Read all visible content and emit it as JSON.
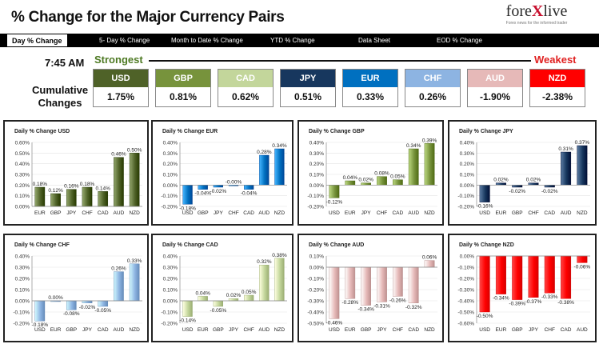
{
  "header": {
    "title": "% Change for the Major Currency Pairs",
    "logo_text_a": "fore",
    "logo_text_b": "X",
    "logo_text_c": "live",
    "logo_tagline": "Forex news for the informed trader"
  },
  "nav": {
    "items": [
      "Day % Change",
      "5- Day % Change",
      "Month to Date % Change",
      "YTD % Change",
      "Data Sheet",
      "EOD % Change"
    ]
  },
  "summary": {
    "time": "7:45 AM",
    "strongest_label": "Strongest",
    "weakest_label": "Weakest",
    "cumulative_line1": "Cumulative",
    "cumulative_line2": "Changes",
    "currencies": [
      {
        "code": "USD",
        "value": "1.75%",
        "color": "#4f6228"
      },
      {
        "code": "GBP",
        "value": "0.81%",
        "color": "#77933c"
      },
      {
        "code": "CAD",
        "value": "0.62%",
        "color": "#c3d69b"
      },
      {
        "code": "JPY",
        "value": "0.51%",
        "color": "#17375e"
      },
      {
        "code": "EUR",
        "value": "0.33%",
        "color": "#0070c0"
      },
      {
        "code": "CHF",
        "value": "0.26%",
        "color": "#8db4e2"
      },
      {
        "code": "AUD",
        "value": "-1.90%",
        "color": "#e6b9b8"
      },
      {
        "code": "NZD",
        "value": "-2.38%",
        "color": "#ff0000"
      }
    ]
  },
  "chart_data": [
    {
      "type": "bar",
      "title": "Daily % Change USD",
      "categories": [
        "EUR",
        "GBP",
        "JPY",
        "CHF",
        "CAD",
        "AUD",
        "NZD"
      ],
      "values": [
        0.18,
        0.12,
        0.16,
        0.18,
        0.14,
        0.46,
        0.5
      ],
      "labels": [
        "0.18%",
        "0.12%",
        "0.16%",
        "0.18%",
        "0.14%",
        "0.46%",
        "0.50%"
      ],
      "ylim": [
        0,
        0.6
      ],
      "ticks": [
        0,
        0.1,
        0.2,
        0.3,
        0.4,
        0.5,
        0.6
      ],
      "tick_labels": [
        "0.00%",
        "0.10%",
        "0.20%",
        "0.30%",
        "0.40%",
        "0.50%",
        "0.60%"
      ],
      "color": "#4f6228"
    },
    {
      "type": "bar",
      "title": "Daily % Change EUR",
      "categories": [
        "USD",
        "GBP",
        "JPY",
        "CHF",
        "CAD",
        "AUD",
        "NZD"
      ],
      "values": [
        -0.18,
        -0.04,
        -0.02,
        -0.0,
        -0.04,
        0.28,
        0.34
      ],
      "labels": [
        "-0.18%",
        "-0.04%",
        "-0.02%",
        "-0.00%",
        "-0.04%",
        "0.28%",
        "0.34%"
      ],
      "ylim": [
        -0.2,
        0.4
      ],
      "ticks": [
        -0.2,
        -0.1,
        0,
        0.1,
        0.2,
        0.3,
        0.4
      ],
      "tick_labels": [
        "-0.20%",
        "-0.10%",
        "0.00%",
        "0.10%",
        "0.20%",
        "0.30%",
        "0.40%"
      ],
      "color": "#0070c0"
    },
    {
      "type": "bar",
      "title": "Daily % Change GBP",
      "categories": [
        "USD",
        "EUR",
        "JPY",
        "CHF",
        "CAD",
        "AUD",
        "NZD"
      ],
      "values": [
        -0.12,
        0.04,
        0.02,
        0.08,
        0.05,
        0.34,
        0.39
      ],
      "labels": [
        "-0.12%",
        "0.04%",
        "0.02%",
        "0.08%",
        "0.05%",
        "0.34%",
        "0.39%"
      ],
      "ylim": [
        -0.2,
        0.4
      ],
      "ticks": [
        -0.2,
        -0.1,
        0,
        0.1,
        0.2,
        0.3,
        0.4
      ],
      "tick_labels": [
        "-0.20%",
        "-0.10%",
        "0.00%",
        "0.10%",
        "0.20%",
        "0.30%",
        "0.40%"
      ],
      "color": "#77933c"
    },
    {
      "type": "bar",
      "title": "Daily % Change JPY",
      "categories": [
        "USD",
        "EUR",
        "GBP",
        "CHF",
        "CAD",
        "AUD",
        "NZD"
      ],
      "values": [
        -0.16,
        0.02,
        -0.02,
        0.02,
        -0.02,
        0.31,
        0.37
      ],
      "labels": [
        "-0.16%",
        "0.02%",
        "-0.02%",
        "0.02%",
        "-0.02%",
        "0.31%",
        "0.37%"
      ],
      "ylim": [
        -0.2,
        0.4
      ],
      "ticks": [
        -0.2,
        -0.1,
        0,
        0.1,
        0.2,
        0.3,
        0.4
      ],
      "tick_labels": [
        "-0.20%",
        "-0.10%",
        "0.00%",
        "0.10%",
        "0.20%",
        "0.30%",
        "0.40%"
      ],
      "color": "#17375e"
    },
    {
      "type": "bar",
      "title": "Daily % Change CHF",
      "categories": [
        "USD",
        "EUR",
        "GBP",
        "JPY",
        "CAD",
        "AUD",
        "NZD"
      ],
      "values": [
        -0.18,
        0.0,
        -0.08,
        -0.02,
        -0.05,
        0.26,
        0.33
      ],
      "labels": [
        "-0.18%",
        "0.00%",
        "-0.08%",
        "-0.02%",
        "-0.05%",
        "0.26%",
        "0.33%"
      ],
      "ylim": [
        -0.2,
        0.4
      ],
      "ticks": [
        -0.2,
        -0.1,
        0,
        0.1,
        0.2,
        0.3,
        0.4
      ],
      "tick_labels": [
        "-0.20%",
        "-0.10%",
        "0.00%",
        "0.10%",
        "0.20%",
        "0.30%",
        "0.40%"
      ],
      "color": "#8db4e2"
    },
    {
      "type": "bar",
      "title": "Daily % Change CAD",
      "categories": [
        "USD",
        "EUR",
        "GBP",
        "JPY",
        "CHF",
        "AUD",
        "NZD"
      ],
      "values": [
        -0.14,
        0.04,
        -0.05,
        0.02,
        0.05,
        0.32,
        0.38
      ],
      "labels": [
        "-0.14%",
        "0.04%",
        "-0.05%",
        "0.02%",
        "0.05%",
        "0.32%",
        "0.38%"
      ],
      "ylim": [
        -0.2,
        0.4
      ],
      "ticks": [
        -0.2,
        -0.1,
        0,
        0.1,
        0.2,
        0.3,
        0.4
      ],
      "tick_labels": [
        "-0.20%",
        "-0.10%",
        "0.00%",
        "0.10%",
        "0.20%",
        "0.30%",
        "0.40%"
      ],
      "color": "#c3d69b"
    },
    {
      "type": "bar",
      "title": "Daily % Change AUD",
      "categories": [
        "USD",
        "EUR",
        "GBP",
        "JPY",
        "CHF",
        "CAD",
        "NZD"
      ],
      "values": [
        -0.46,
        -0.28,
        -0.34,
        -0.31,
        -0.26,
        -0.32,
        0.06
      ],
      "labels": [
        "-0.46%",
        "-0.28%",
        "-0.34%",
        "-0.31%",
        "-0.26%",
        "-0.32%",
        "0.06%"
      ],
      "ylim": [
        -0.5,
        0.1
      ],
      "ticks": [
        -0.5,
        -0.4,
        -0.3,
        -0.2,
        -0.1,
        0,
        0.1
      ],
      "tick_labels": [
        "-0.50%",
        "-0.40%",
        "-0.30%",
        "-0.20%",
        "-0.10%",
        "0.00%",
        "0.10%"
      ],
      "color": "#e6b9b8"
    },
    {
      "type": "bar",
      "title": "Daily % Change NZD",
      "categories": [
        "USD",
        "EUR",
        "GBP",
        "JPY",
        "CHF",
        "CAD",
        "AUD"
      ],
      "values": [
        -0.5,
        -0.34,
        -0.39,
        -0.37,
        -0.33,
        -0.38,
        -0.06
      ],
      "labels": [
        "-0.50%",
        "-0.34%",
        "-0.39%",
        "-0.37%",
        "-0.33%",
        "-0.38%",
        "-0.06%"
      ],
      "ylim": [
        -0.6,
        0
      ],
      "ticks": [
        -0.6,
        -0.5,
        -0.4,
        -0.3,
        -0.2,
        -0.1,
        0
      ],
      "tick_labels": [
        "-0.60%",
        "-0.50%",
        "-0.40%",
        "-0.30%",
        "-0.20%",
        "-0.10%",
        "0.00%"
      ],
      "color": "#ff0000"
    }
  ]
}
